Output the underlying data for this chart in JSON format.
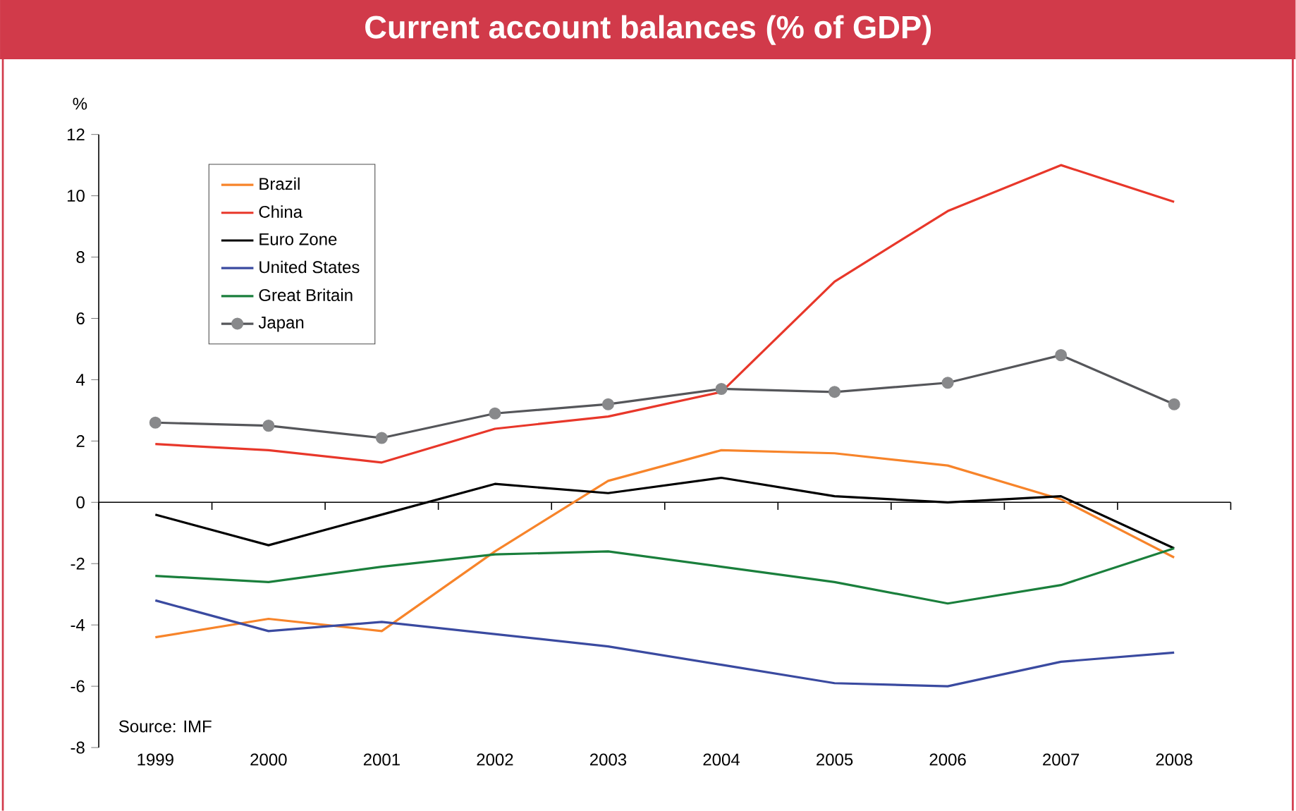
{
  "chart_data": {
    "type": "line",
    "title": "Current account balances (% of GDP)",
    "ylabel": "%",
    "categories": [
      "1999",
      "2000",
      "2001",
      "2002",
      "2003",
      "2004",
      "2005",
      "2006",
      "2007",
      "2008"
    ],
    "series": [
      {
        "name": "Brazil",
        "color": "#f7842a",
        "values": [
          -4.4,
          -3.8,
          -4.2,
          -1.6,
          0.7,
          1.7,
          1.6,
          1.2,
          0.1,
          -1.8
        ]
      },
      {
        "name": "China",
        "color": "#e8372a",
        "values": [
          1.9,
          1.7,
          1.3,
          2.4,
          2.8,
          3.6,
          7.2,
          9.5,
          11.0,
          9.8
        ]
      },
      {
        "name": "Euro Zone",
        "color": "#000000",
        "values": [
          -0.4,
          -1.4,
          -0.4,
          0.6,
          0.3,
          0.8,
          0.2,
          0.0,
          0.2,
          -1.5
        ]
      },
      {
        "name": "United States",
        "color": "#3a4aa0",
        "values": [
          -3.2,
          -4.2,
          -3.9,
          -4.3,
          -4.7,
          -5.3,
          -5.9,
          -6.0,
          -5.2,
          -4.9
        ]
      },
      {
        "name": "Great Britain",
        "color": "#1a7f3c",
        "values": [
          -2.4,
          -2.6,
          -2.1,
          -1.7,
          -1.6,
          -2.1,
          -2.6,
          -3.3,
          -2.7,
          -1.5
        ]
      },
      {
        "name": "Japan",
        "color": "#55565a",
        "marker": "circle",
        "values": [
          2.6,
          2.5,
          2.1,
          2.9,
          3.2,
          3.7,
          3.6,
          3.9,
          4.8,
          3.2
        ]
      }
    ],
    "ylim": [
      -8,
      12
    ],
    "yticks": [
      -8,
      -6,
      -4,
      -2,
      0,
      2,
      4,
      6,
      8,
      10,
      12
    ],
    "marker": "none",
    "line_style": "solid",
    "legend": "top left",
    "annotations": [
      "Source: IMF"
    ]
  }
}
